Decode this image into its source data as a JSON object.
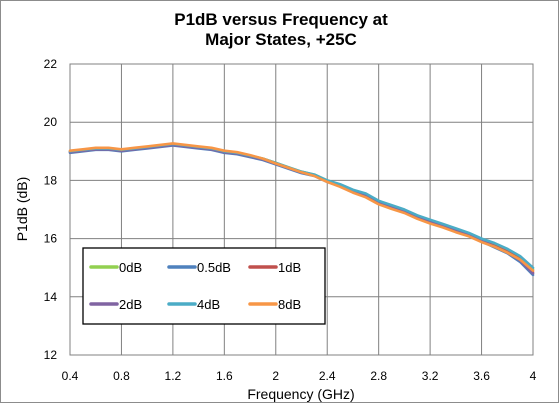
{
  "chart_data": {
    "type": "line",
    "title_line1": "P1dB versus Frequency at",
    "title_line2": "Major States, +25C",
    "xlabel": "Frequency (GHz)",
    "ylabel": "P1dB (dB)",
    "xlim": [
      0.4,
      4.0
    ],
    "ylim": [
      12,
      22
    ],
    "x_ticks": [
      0.4,
      0.8,
      1.2,
      1.6,
      2.0,
      2.4,
      2.8,
      3.2,
      3.6,
      4.0
    ],
    "x_tick_labels": [
      "0.4",
      "0.8",
      "1.2",
      "1.6",
      "2",
      "2.4",
      "2.8",
      "3.2",
      "3.6",
      "4"
    ],
    "y_ticks": [
      12,
      14,
      16,
      18,
      20,
      22
    ],
    "y_tick_labels": [
      "12",
      "14",
      "16",
      "18",
      "20",
      "22"
    ],
    "grid": true,
    "legend_position": "bottom-left",
    "x": [
      0.4,
      0.5,
      0.6,
      0.7,
      0.8,
      0.9,
      1.0,
      1.1,
      1.2,
      1.3,
      1.4,
      1.5,
      1.6,
      1.7,
      1.8,
      1.9,
      2.0,
      2.1,
      2.2,
      2.3,
      2.4,
      2.5,
      2.6,
      2.7,
      2.8,
      2.9,
      3.0,
      3.1,
      3.2,
      3.3,
      3.4,
      3.5,
      3.6,
      3.7,
      3.8,
      3.9,
      4.0
    ],
    "series": [
      {
        "name": "0dB",
        "color": "#92d050",
        "values": [
          19.0,
          19.05,
          19.1,
          19.1,
          19.05,
          19.1,
          19.15,
          19.2,
          19.25,
          19.2,
          19.15,
          19.1,
          19.0,
          18.95,
          18.85,
          18.75,
          18.6,
          18.45,
          18.3,
          18.2,
          18.0,
          17.85,
          17.65,
          17.5,
          17.25,
          17.1,
          16.95,
          16.75,
          16.6,
          16.45,
          16.3,
          16.15,
          15.95,
          15.8,
          15.6,
          15.35,
          14.95
        ]
      },
      {
        "name": "0.5dB",
        "color": "#4f81bd",
        "values": [
          18.95,
          19.0,
          19.05,
          19.05,
          19.0,
          19.05,
          19.1,
          19.15,
          19.2,
          19.15,
          19.1,
          19.05,
          18.95,
          18.9,
          18.8,
          18.7,
          18.55,
          18.4,
          18.25,
          18.15,
          17.95,
          17.8,
          17.6,
          17.45,
          17.2,
          17.05,
          16.9,
          16.7,
          16.55,
          16.4,
          16.25,
          16.1,
          15.9,
          15.7,
          15.5,
          15.2,
          14.75
        ]
      },
      {
        "name": "1dB",
        "color": "#c0504d",
        "values": [
          18.98,
          19.03,
          19.08,
          19.08,
          19.03,
          19.08,
          19.13,
          19.18,
          19.23,
          19.18,
          19.13,
          19.08,
          18.98,
          18.93,
          18.83,
          18.73,
          18.58,
          18.43,
          18.28,
          18.18,
          17.98,
          17.83,
          17.63,
          17.48,
          17.23,
          17.08,
          16.93,
          16.73,
          16.58,
          16.43,
          16.28,
          16.13,
          15.93,
          15.75,
          15.55,
          15.3,
          14.85
        ]
      },
      {
        "name": "2dB",
        "color": "#8064a2",
        "values": [
          18.97,
          19.02,
          19.07,
          19.07,
          19.02,
          19.07,
          19.12,
          19.17,
          19.22,
          19.17,
          19.12,
          19.07,
          18.97,
          18.92,
          18.82,
          18.72,
          18.57,
          18.42,
          18.27,
          18.17,
          17.97,
          17.82,
          17.62,
          17.47,
          17.22,
          17.07,
          16.92,
          16.72,
          16.57,
          16.42,
          16.27,
          16.12,
          15.92,
          15.73,
          15.53,
          15.25,
          14.8
        ]
      },
      {
        "name": "4dB",
        "color": "#4bacc6",
        "values": [
          19.0,
          19.05,
          19.1,
          19.1,
          19.05,
          19.1,
          19.15,
          19.2,
          19.25,
          19.2,
          19.15,
          19.1,
          19.0,
          18.95,
          18.85,
          18.75,
          18.6,
          18.45,
          18.3,
          18.2,
          18.0,
          17.87,
          17.68,
          17.55,
          17.3,
          17.15,
          17.0,
          16.8,
          16.65,
          16.5,
          16.35,
          16.2,
          16.0,
          15.85,
          15.65,
          15.4,
          15.0
        ]
      },
      {
        "name": "8dB",
        "color": "#f79646",
        "values": [
          19.02,
          19.07,
          19.12,
          19.12,
          19.07,
          19.12,
          19.17,
          19.22,
          19.27,
          19.22,
          19.17,
          19.12,
          19.02,
          18.97,
          18.87,
          18.75,
          18.58,
          18.43,
          18.28,
          18.15,
          17.95,
          17.78,
          17.58,
          17.42,
          17.18,
          17.02,
          16.88,
          16.68,
          16.52,
          16.38,
          16.22,
          16.08,
          15.88,
          15.72,
          15.52,
          15.28,
          14.9
        ]
      }
    ]
  }
}
